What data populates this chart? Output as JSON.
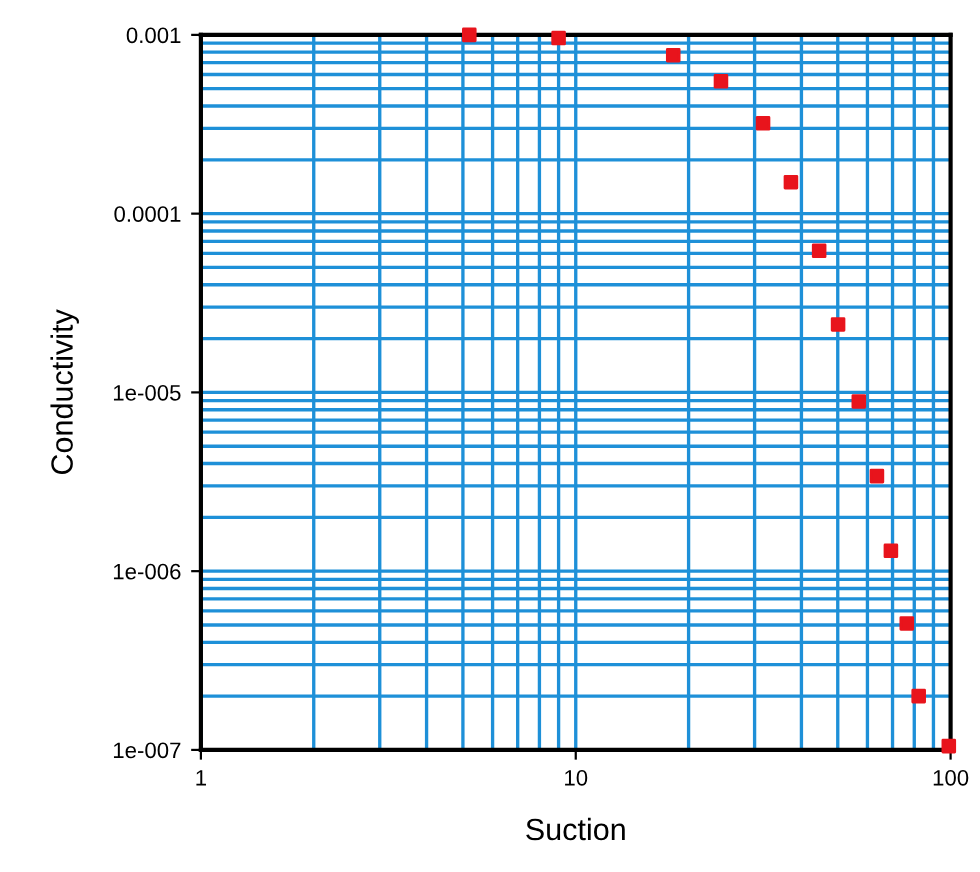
{
  "chart_data": {
    "type": "scatter",
    "xlabel": "Suction",
    "ylabel": "Conductivity",
    "log": "xy",
    "x": [
      5.2,
      9.0,
      18.2,
      24.4,
      31.6,
      37.5,
      44.6,
      50.1,
      56.9,
      63.6,
      69.3,
      76.4,
      82.2,
      98.9
    ],
    "series": [
      {
        "color": "#e8141c",
        "values": [
          0.001,
          0.00096,
          0.00077,
          0.00055,
          0.00032,
          0.00015,
          6.2e-05,
          2.4e-05,
          8.9e-06,
          3.4e-06,
          1.3e-06,
          5.1e-07,
          2e-07,
          1.05e-07
        ]
      }
    ],
    "xlim": [
      1,
      100
    ],
    "ylim": [
      1e-07,
      0.001
    ],
    "xticks": [
      1,
      10,
      100
    ],
    "yticks": [
      {
        "value": 1e-07,
        "label": "1e-007"
      },
      {
        "value": 1e-06,
        "label": "1e-006"
      },
      {
        "value": 1e-05,
        "label": "1e-005"
      },
      {
        "value": 0.0001,
        "label": "0.0001"
      },
      {
        "value": 0.001,
        "label": "0.001"
      }
    ],
    "grid": true,
    "marker": "square",
    "legend": false
  }
}
